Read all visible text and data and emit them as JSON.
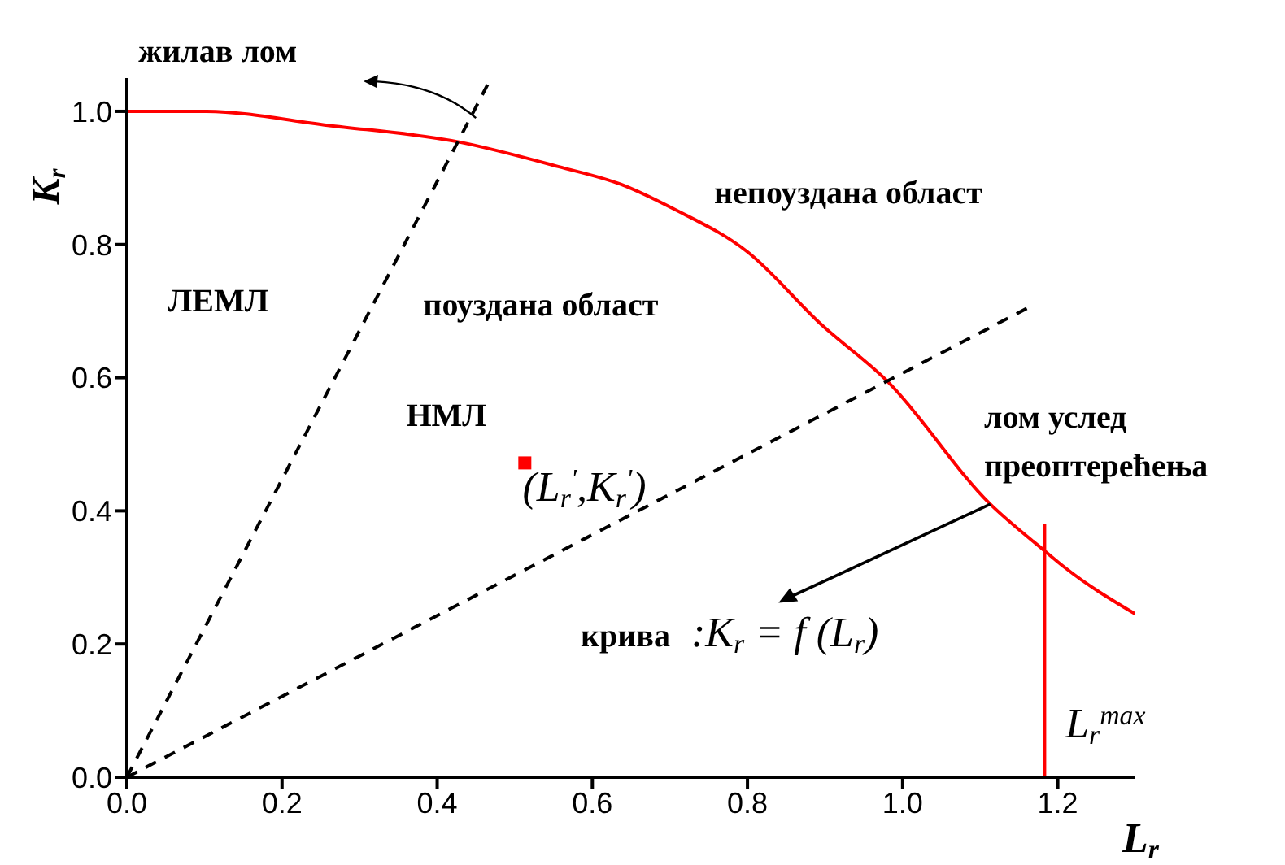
{
  "chart_data": {
    "type": "line",
    "xlabel": "L$_{r}$",
    "ylabel": "K$_{r}$",
    "xlim": [
      0,
      1.3
    ],
    "ylim": [
      0,
      1.05
    ],
    "xticks": [
      {
        "value": 0,
        "label": "0.0"
      },
      0.2,
      0.4,
      0.6,
      0.8,
      {
        "value": 1,
        "label": "1.0"
      },
      1.2
    ],
    "yticks": [
      {
        "value": 0,
        "label": "0.0"
      },
      0.2,
      0.4,
      0.6,
      0.8,
      {
        "value": 1,
        "label": "1.0"
      }
    ],
    "grid": false,
    "marker": "none",
    "series": [
      {
        "color": "#ff0000",
        "line_style": "solid",
        "x": [
          0,
          0.1,
          0.259,
          0.428,
          0.556,
          0.64,
          0.704,
          0.8,
          0.895,
          0.98,
          1.113,
          1.183,
          1.209,
          1.3
        ],
        "values": [
          1,
          1,
          0.979,
          0.954,
          0.917,
          0.889,
          0.854,
          0.789,
          0.68,
          0.595,
          0.41,
          0.34,
          0.315,
          0.245
        ]
      },
      {
        "color": "#000000",
        "line_style": "dashed",
        "x": [
          0,
          0.465
        ],
        "values": [
          0,
          1.04
        ]
      },
      {
        "color": "#000000",
        "line_style": "dashed",
        "x": [
          0,
          1.16
        ],
        "values": [
          0,
          0.704
        ]
      },
      {
        "color": "#ff0000",
        "line_style": "solid",
        "x": [
          1.183,
          1.183
        ],
        "values": [
          0,
          0.38
        ]
      },
      {
        "type": "scatter",
        "color": "#ff0000",
        "marker": "square",
        "x": [
          0.513
        ],
        "values": [
          0.472
        ]
      }
    ],
    "annotations": [
      "жилав лом",
      "ЛЕМЛ",
      "поуздана област",
      "непоуздана област",
      "НМЛ",
      "(L$_{r}$$^{'}$,K$_{r}$$^{'}$)",
      "лом услед преоптерећења",
      {
        "text": "крива :K$_{r}$ = f (L$_{r}$)",
        "x": 1.113,
        "y": 0.41
      },
      "L$_{r}$$^{max}$"
    ]
  }
}
